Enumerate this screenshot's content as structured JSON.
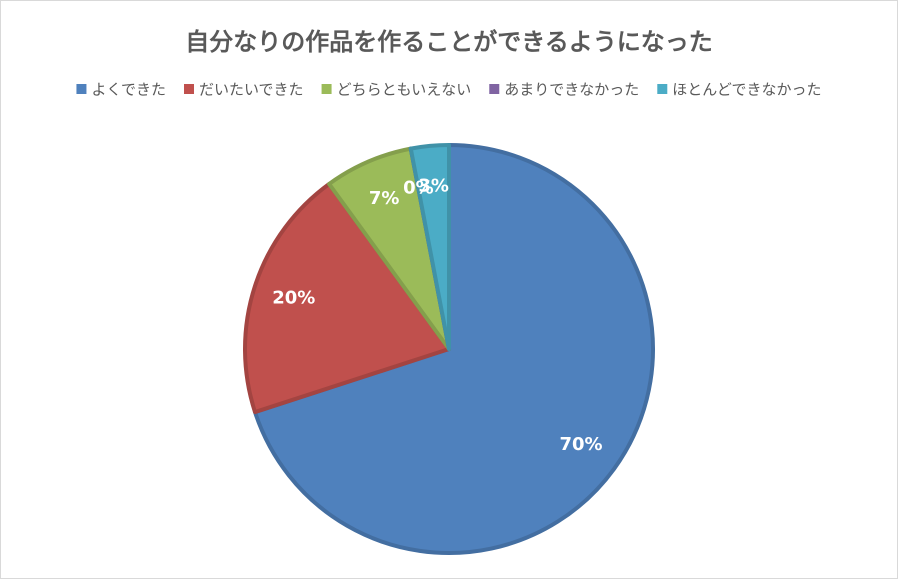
{
  "chart_data": {
    "type": "pie",
    "title": "自分なりの作品を作ることができるようになった",
    "categories": [
      "よくできた",
      "だいたいできた",
      "どちらともいえない",
      "あまりできなかった",
      "ほとんどできなかった"
    ],
    "values": [
      70,
      20,
      7,
      0,
      3
    ],
    "value_labels": [
      "70%",
      "20%",
      "7%",
      "0%",
      "3%"
    ],
    "colors": [
      "#4f81bd",
      "#c0504d",
      "#9bbb59",
      "#8064a2",
      "#4bacc6"
    ],
    "legend": "top"
  }
}
